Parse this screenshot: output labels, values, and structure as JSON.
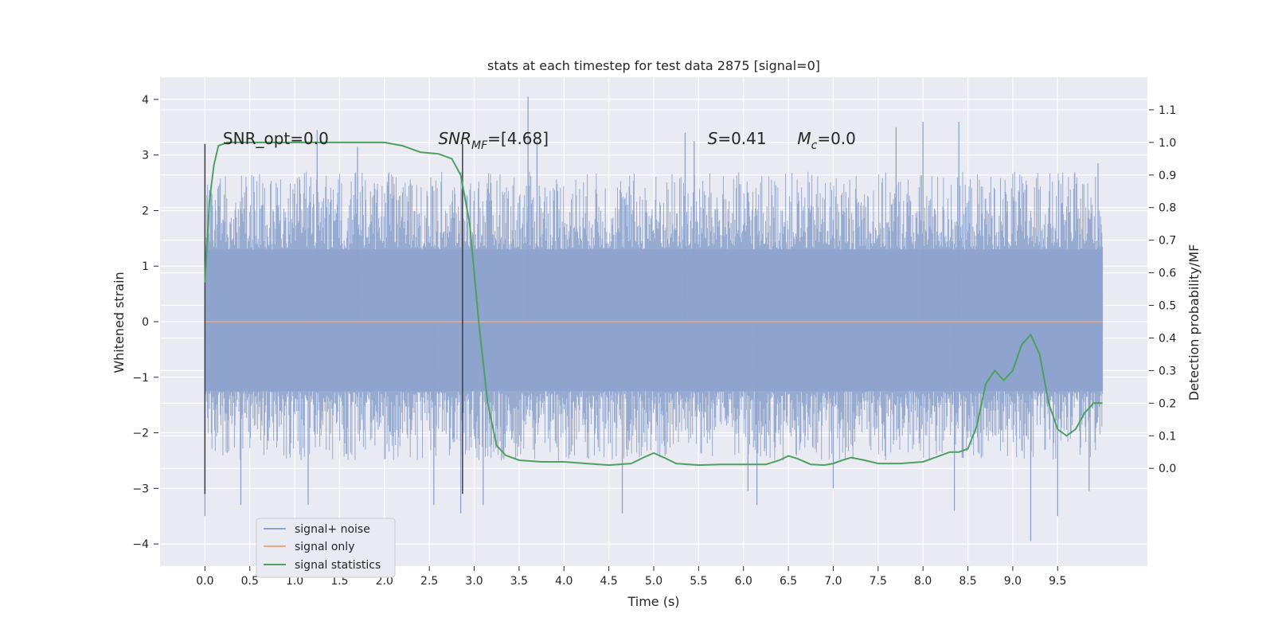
{
  "chart_data": {
    "type": "line",
    "title": "stats at each timestep for test data 2875 [signal=0]",
    "xlabel": "Time (s)",
    "ylabel": "Whitened strain",
    "ylabel_right": "Detection probability/MF",
    "xlim": [
      -0.5,
      10.5
    ],
    "ylim": [
      -4.4,
      4.4
    ],
    "ylim_right": [
      -0.3,
      1.2
    ],
    "x_ticks": [
      0.0,
      0.5,
      1.0,
      1.5,
      2.0,
      2.5,
      3.0,
      3.5,
      4.0,
      4.5,
      5.0,
      5.5,
      6.0,
      6.5,
      7.0,
      7.5,
      8.0,
      8.5,
      9.0,
      9.5
    ],
    "x_tick_labels": [
      "0.0",
      "0.5",
      "1.0",
      "1.5",
      "2.0",
      "2.5",
      "3.0",
      "3.5",
      "4.0",
      "4.5",
      "5.0",
      "5.5",
      "6.0",
      "6.5",
      "7.0",
      "7.5",
      "8.0",
      "8.5",
      "9.0",
      "9.5"
    ],
    "y_ticks": [
      4,
      3,
      2,
      1,
      0,
      -1,
      -2,
      -3,
      -4
    ],
    "y_tick_labels": [
      "4",
      "3",
      "2",
      "1",
      "0",
      "−1",
      "−2",
      "−3",
      "−4"
    ],
    "y_right_ticks": [
      1.1,
      1.0,
      0.9,
      0.8,
      0.7,
      0.6,
      0.5,
      0.4,
      0.3,
      0.2,
      0.1,
      0.0
    ],
    "y_right_tick_labels": [
      "1.1",
      "1.0",
      "0.9",
      "0.8",
      "0.7",
      "0.6",
      "0.5",
      "0.4",
      "0.3",
      "0.2",
      "0.1",
      "0.0"
    ],
    "grid": true,
    "legend_position": "bottom-left",
    "annotations": [
      {
        "text": "SNR_opt=0.0",
        "x": 0.2,
        "y": 3.3
      },
      {
        "text": "SNR",
        "sub": "MF",
        "suffix": "=[4.68]",
        "italic": true,
        "x": 2.6,
        "y": 3.3
      },
      {
        "text": "S",
        "suffix": "=0.41",
        "italic": true,
        "x": 5.6,
        "y": 3.3
      },
      {
        "text": "M",
        "sub": "c",
        "suffix": "=0.0",
        "italic": true,
        "x": 6.6,
        "y": 3.3
      }
    ],
    "vertical_markers": [
      {
        "x": 0.0,
        "y1": 3.2,
        "y2": -3.1
      },
      {
        "x": 2.87,
        "y1": 3.2,
        "y2": -3.1
      }
    ],
    "series": [
      {
        "name": "signal+ noise",
        "color": "#8ea3cc",
        "axis": "left",
        "x_range": [
          0.0,
          10.0
        ],
        "band_inner": [
          -1.25,
          1.3
        ],
        "band_outer": [
          -2.5,
          2.7
        ],
        "spikes": [
          {
            "x": 0.0,
            "y": -3.5
          },
          {
            "x": 0.4,
            "y": -3.3
          },
          {
            "x": 1.15,
            "y": -3.3
          },
          {
            "x": 1.25,
            "y": 3.45
          },
          {
            "x": 2.55,
            "y": -3.3
          },
          {
            "x": 2.85,
            "y": -3.45
          },
          {
            "x": 3.1,
            "y": -3.3
          },
          {
            "x": 3.6,
            "y": 4.05
          },
          {
            "x": 4.65,
            "y": -3.45
          },
          {
            "x": 5.35,
            "y": 3.4
          },
          {
            "x": 6.15,
            "y": -3.3
          },
          {
            "x": 6.05,
            "y": -3.05
          },
          {
            "x": 7.7,
            "y": 3.5
          },
          {
            "x": 8.0,
            "y": 3.6
          },
          {
            "x": 8.4,
            "y": 3.6
          },
          {
            "x": 8.35,
            "y": -3.4
          },
          {
            "x": 9.2,
            "y": -3.95
          },
          {
            "x": 9.5,
            "y": -3.5
          },
          {
            "x": 9.95,
            "y": 2.85
          },
          {
            "x": 5.45,
            "y": 3.25
          },
          {
            "x": 3.7,
            "y": 3.25
          },
          {
            "x": 1.7,
            "y": 3.15
          },
          {
            "x": 9.85,
            "y": -3.05
          },
          {
            "x": 7.0,
            "y": -3.0
          }
        ]
      },
      {
        "name": "signal only",
        "color": "#e8a98a",
        "axis": "left",
        "x": [
          0.0,
          10.0
        ],
        "y": [
          0.0,
          0.0
        ]
      },
      {
        "name": "signal statistics",
        "color": "#4fa060",
        "axis": "right",
        "x": [
          0.0,
          0.05,
          0.1,
          0.15,
          0.25,
          0.5,
          1.0,
          1.5,
          2.0,
          2.2,
          2.4,
          2.6,
          2.75,
          2.85,
          2.95,
          3.05,
          3.15,
          3.25,
          3.35,
          3.5,
          3.75,
          4.0,
          4.25,
          4.5,
          4.75,
          4.9,
          5.0,
          5.1,
          5.25,
          5.5,
          5.75,
          6.0,
          6.25,
          6.4,
          6.5,
          6.6,
          6.75,
          6.9,
          7.0,
          7.1,
          7.2,
          7.35,
          7.5,
          7.75,
          8.0,
          8.15,
          8.3,
          8.4,
          8.5,
          8.6,
          8.7,
          8.8,
          8.9,
          9.0,
          9.1,
          9.2,
          9.3,
          9.4,
          9.5,
          9.6,
          9.7,
          9.8,
          9.9,
          10.0
        ],
        "y": [
          0.57,
          0.82,
          0.93,
          0.99,
          1.0,
          1.0,
          1.0,
          1.0,
          1.0,
          0.99,
          0.97,
          0.965,
          0.95,
          0.9,
          0.75,
          0.45,
          0.2,
          0.07,
          0.04,
          0.025,
          0.02,
          0.02,
          0.015,
          0.01,
          0.015,
          0.035,
          0.047,
          0.035,
          0.015,
          0.01,
          0.012,
          0.012,
          0.012,
          0.025,
          0.038,
          0.03,
          0.012,
          0.01,
          0.015,
          0.025,
          0.033,
          0.025,
          0.015,
          0.015,
          0.02,
          0.035,
          0.05,
          0.05,
          0.06,
          0.13,
          0.26,
          0.3,
          0.27,
          0.3,
          0.38,
          0.41,
          0.35,
          0.2,
          0.12,
          0.1,
          0.12,
          0.17,
          0.2,
          0.2
        ]
      }
    ]
  }
}
